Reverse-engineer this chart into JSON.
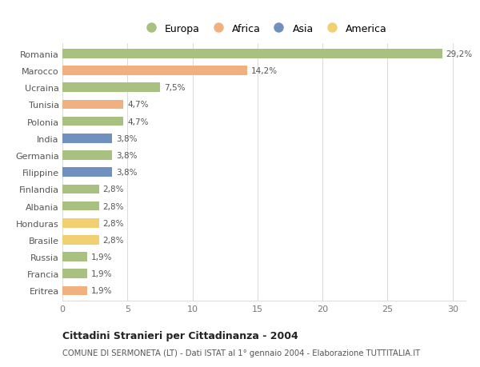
{
  "countries": [
    "Romania",
    "Marocco",
    "Ucraina",
    "Tunisia",
    "Polonia",
    "India",
    "Germania",
    "Filippine",
    "Finlandia",
    "Albania",
    "Honduras",
    "Brasile",
    "Russia",
    "Francia",
    "Eritrea"
  ],
  "values": [
    29.2,
    14.2,
    7.5,
    4.7,
    4.7,
    3.8,
    3.8,
    3.8,
    2.8,
    2.8,
    2.8,
    2.8,
    1.9,
    1.9,
    1.9
  ],
  "labels": [
    "29,2%",
    "14,2%",
    "7,5%",
    "4,7%",
    "4,7%",
    "3,8%",
    "3,8%",
    "3,8%",
    "2,8%",
    "2,8%",
    "2,8%",
    "2,8%",
    "1,9%",
    "1,9%",
    "1,9%"
  ],
  "continents": [
    "Europa",
    "Africa",
    "Europa",
    "Africa",
    "Europa",
    "Asia",
    "Europa",
    "Asia",
    "Europa",
    "Europa",
    "America",
    "America",
    "Europa",
    "Europa",
    "Africa"
  ],
  "colors": {
    "Europa": "#a8c080",
    "Africa": "#f0b080",
    "Asia": "#7090c0",
    "America": "#f0d070"
  },
  "legend_order": [
    "Europa",
    "Africa",
    "Asia",
    "America"
  ],
  "title": "Cittadini Stranieri per Cittadinanza - 2004",
  "subtitle": "COMUNE DI SERMONETA (LT) - Dati ISTAT al 1° gennaio 2004 - Elaborazione TUTTITALIA.IT",
  "xlim": [
    0,
    31
  ],
  "xticks": [
    0,
    5,
    10,
    15,
    20,
    25,
    30
  ],
  "background_color": "#ffffff",
  "bar_height": 0.55,
  "grid_color": "#dddddd"
}
